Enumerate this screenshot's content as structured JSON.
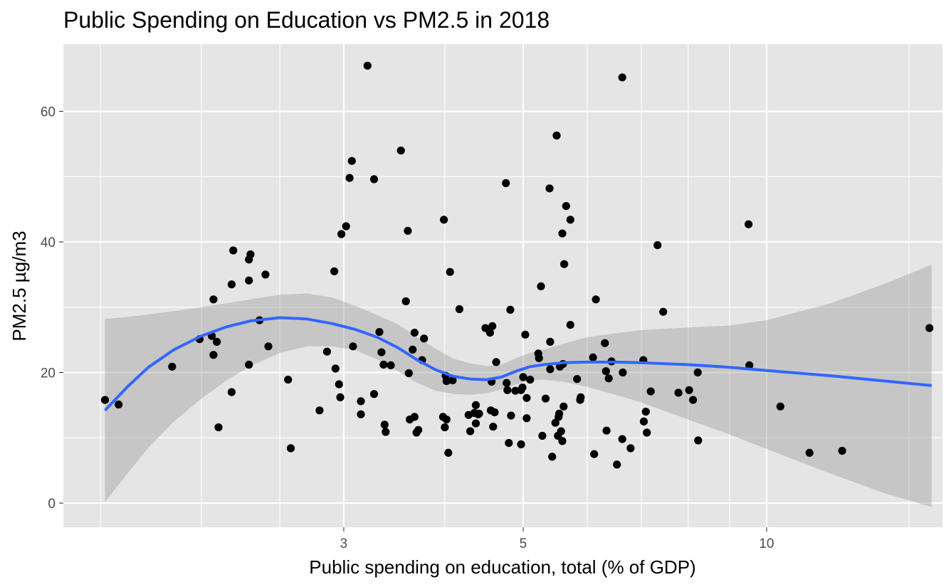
{
  "chart_data": {
    "type": "scatter",
    "title": "Public Spending on Education vs PM2.5 in 2018",
    "xlabel": "Public spending on education, total (% of GDP)",
    "ylabel": "PM2.5 µg/m3",
    "x_scale": "log10",
    "xlim": [
      1.35,
      16.5
    ],
    "ylim": [
      -3.7,
      70.3
    ],
    "x_ticks": [
      3,
      5,
      10
    ],
    "x_tick_labels": [
      "3",
      "5",
      "10"
    ],
    "x_minor_ticks": [
      1.5,
      2,
      2.5,
      4,
      6,
      7,
      8,
      9,
      15
    ],
    "y_ticks": [
      0,
      20,
      40,
      60
    ],
    "y_tick_labels": [
      "0",
      "20",
      "40",
      "60"
    ],
    "y_minor_ticks": [
      10,
      30,
      50
    ],
    "grid": true,
    "colors": {
      "panel_background": "#e5e5e5",
      "grid": "#ffffff",
      "points": "#000000",
      "smooth_line": "#3366ff",
      "ribbon": "#999999"
    },
    "points": [
      {
        "x": 1.52,
        "y": 15.8
      },
      {
        "x": 1.58,
        "y": 15.1
      },
      {
        "x": 1.84,
        "y": 20.9
      },
      {
        "x": 1.99,
        "y": 25.1
      },
      {
        "x": 2.06,
        "y": 25.6
      },
      {
        "x": 2.07,
        "y": 22.7
      },
      {
        "x": 2.07,
        "y": 31.2
      },
      {
        "x": 2.09,
        "y": 24.7
      },
      {
        "x": 2.1,
        "y": 11.6
      },
      {
        "x": 2.18,
        "y": 17.0
      },
      {
        "x": 2.18,
        "y": 33.5
      },
      {
        "x": 2.19,
        "y": 38.7
      },
      {
        "x": 2.29,
        "y": 21.2
      },
      {
        "x": 2.29,
        "y": 34.1
      },
      {
        "x": 2.29,
        "y": 37.3
      },
      {
        "x": 2.3,
        "y": 38.1
      },
      {
        "x": 2.36,
        "y": 28.0
      },
      {
        "x": 2.4,
        "y": 35.0
      },
      {
        "x": 2.42,
        "y": 24.0
      },
      {
        "x": 2.56,
        "y": 18.9
      },
      {
        "x": 2.58,
        "y": 8.4
      },
      {
        "x": 2.8,
        "y": 14.2
      },
      {
        "x": 2.86,
        "y": 23.2
      },
      {
        "x": 2.92,
        "y": 35.5
      },
      {
        "x": 2.93,
        "y": 20.6
      },
      {
        "x": 2.96,
        "y": 18.2
      },
      {
        "x": 2.97,
        "y": 16.2
      },
      {
        "x": 2.98,
        "y": 41.2
      },
      {
        "x": 3.02,
        "y": 42.4
      },
      {
        "x": 3.05,
        "y": 49.8
      },
      {
        "x": 3.07,
        "y": 52.4
      },
      {
        "x": 3.08,
        "y": 24.0
      },
      {
        "x": 3.15,
        "y": 15.6
      },
      {
        "x": 3.15,
        "y": 13.6
      },
      {
        "x": 3.21,
        "y": 67.0
      },
      {
        "x": 3.27,
        "y": 49.6
      },
      {
        "x": 3.27,
        "y": 16.7
      },
      {
        "x": 3.32,
        "y": 26.2
      },
      {
        "x": 3.34,
        "y": 23.1
      },
      {
        "x": 3.36,
        "y": 21.2
      },
      {
        "x": 3.37,
        "y": 12.0
      },
      {
        "x": 3.38,
        "y": 10.9
      },
      {
        "x": 3.43,
        "y": 21.1
      },
      {
        "x": 3.53,
        "y": 54.0
      },
      {
        "x": 3.58,
        "y": 30.9
      },
      {
        "x": 3.6,
        "y": 41.7
      },
      {
        "x": 3.61,
        "y": 19.9
      },
      {
        "x": 3.62,
        "y": 12.8
      },
      {
        "x": 3.65,
        "y": 23.5
      },
      {
        "x": 3.67,
        "y": 26.1
      },
      {
        "x": 3.67,
        "y": 13.2
      },
      {
        "x": 3.69,
        "y": 10.8
      },
      {
        "x": 3.71,
        "y": 11.2
      },
      {
        "x": 3.75,
        "y": 21.9
      },
      {
        "x": 3.77,
        "y": 25.2
      },
      {
        "x": 3.98,
        "y": 13.2
      },
      {
        "x": 3.99,
        "y": 43.4
      },
      {
        "x": 4.0,
        "y": 11.6
      },
      {
        "x": 4.01,
        "y": 19.5
      },
      {
        "x": 4.02,
        "y": 18.7
      },
      {
        "x": 4.02,
        "y": 12.8
      },
      {
        "x": 4.04,
        "y": 7.7
      },
      {
        "x": 4.06,
        "y": 35.4
      },
      {
        "x": 4.09,
        "y": 18.8
      },
      {
        "x": 4.17,
        "y": 29.7
      },
      {
        "x": 4.28,
        "y": 13.5
      },
      {
        "x": 4.3,
        "y": 11.0
      },
      {
        "x": 4.35,
        "y": 13.8
      },
      {
        "x": 4.37,
        "y": 15.0
      },
      {
        "x": 4.37,
        "y": 12.2
      },
      {
        "x": 4.4,
        "y": 13.6
      },
      {
        "x": 4.41,
        "y": 13.7
      },
      {
        "x": 4.49,
        "y": 26.8
      },
      {
        "x": 4.55,
        "y": 26.1
      },
      {
        "x": 4.56,
        "y": 14.2
      },
      {
        "x": 4.57,
        "y": 18.6
      },
      {
        "x": 4.58,
        "y": 27.1
      },
      {
        "x": 4.59,
        "y": 11.7
      },
      {
        "x": 4.61,
        "y": 13.9
      },
      {
        "x": 4.63,
        "y": 21.6
      },
      {
        "x": 4.76,
        "y": 49.0
      },
      {
        "x": 4.77,
        "y": 18.4
      },
      {
        "x": 4.78,
        "y": 17.3
      },
      {
        "x": 4.8,
        "y": 9.2
      },
      {
        "x": 4.82,
        "y": 29.6
      },
      {
        "x": 4.83,
        "y": 13.4
      },
      {
        "x": 4.89,
        "y": 17.2
      },
      {
        "x": 4.97,
        "y": 9.0
      },
      {
        "x": 4.97,
        "y": 17.3
      },
      {
        "x": 4.99,
        "y": 17.7
      },
      {
        "x": 5.0,
        "y": 19.3
      },
      {
        "x": 5.03,
        "y": 25.8
      },
      {
        "x": 5.05,
        "y": 16.1
      },
      {
        "x": 5.05,
        "y": 13.0
      },
      {
        "x": 5.1,
        "y": 18.9
      },
      {
        "x": 5.22,
        "y": 22.9
      },
      {
        "x": 5.23,
        "y": 22.2
      },
      {
        "x": 5.26,
        "y": 33.2
      },
      {
        "x": 5.28,
        "y": 10.3
      },
      {
        "x": 5.33,
        "y": 16.0
      },
      {
        "x": 5.39,
        "y": 48.2
      },
      {
        "x": 5.4,
        "y": 24.7
      },
      {
        "x": 5.4,
        "y": 20.5
      },
      {
        "x": 5.43,
        "y": 7.1
      },
      {
        "x": 5.48,
        "y": 12.3
      },
      {
        "x": 5.5,
        "y": 56.3
      },
      {
        "x": 5.52,
        "y": 10.3
      },
      {
        "x": 5.53,
        "y": 13.2
      },
      {
        "x": 5.54,
        "y": 13.7
      },
      {
        "x": 5.55,
        "y": 20.9
      },
      {
        "x": 5.57,
        "y": 11.0
      },
      {
        "x": 5.59,
        "y": 41.3
      },
      {
        "x": 5.59,
        "y": 9.5
      },
      {
        "x": 5.6,
        "y": 21.3
      },
      {
        "x": 5.61,
        "y": 14.8
      },
      {
        "x": 5.62,
        "y": 36.6
      },
      {
        "x": 5.65,
        "y": 45.5
      },
      {
        "x": 5.72,
        "y": 43.4
      },
      {
        "x": 5.72,
        "y": 27.3
      },
      {
        "x": 5.83,
        "y": 19.0
      },
      {
        "x": 5.88,
        "y": 15.8
      },
      {
        "x": 5.89,
        "y": 16.2
      },
      {
        "x": 6.1,
        "y": 22.3
      },
      {
        "x": 6.12,
        "y": 7.5
      },
      {
        "x": 6.15,
        "y": 31.2
      },
      {
        "x": 6.31,
        "y": 24.5
      },
      {
        "x": 6.33,
        "y": 20.2
      },
      {
        "x": 6.34,
        "y": 11.1
      },
      {
        "x": 6.38,
        "y": 19.1
      },
      {
        "x": 6.43,
        "y": 21.7
      },
      {
        "x": 6.53,
        "y": 5.9
      },
      {
        "x": 6.63,
        "y": 65.2
      },
      {
        "x": 6.63,
        "y": 9.8
      },
      {
        "x": 6.64,
        "y": 20.0
      },
      {
        "x": 6.79,
        "y": 8.4
      },
      {
        "x": 7.04,
        "y": 21.9
      },
      {
        "x": 7.05,
        "y": 12.5
      },
      {
        "x": 7.09,
        "y": 14.0
      },
      {
        "x": 7.11,
        "y": 10.8
      },
      {
        "x": 7.19,
        "y": 17.1
      },
      {
        "x": 7.33,
        "y": 39.5
      },
      {
        "x": 7.45,
        "y": 29.3
      },
      {
        "x": 7.78,
        "y": 16.9
      },
      {
        "x": 8.02,
        "y": 17.3
      },
      {
        "x": 8.11,
        "y": 15.8
      },
      {
        "x": 8.22,
        "y": 20.0
      },
      {
        "x": 8.23,
        "y": 9.6
      },
      {
        "x": 9.5,
        "y": 42.7
      },
      {
        "x": 9.52,
        "y": 21.1
      },
      {
        "x": 10.4,
        "y": 14.8
      },
      {
        "x": 11.3,
        "y": 7.7
      },
      {
        "x": 12.4,
        "y": 8.0
      },
      {
        "x": 15.9,
        "y": 26.8
      }
    ],
    "smooth_line": {
      "x": [
        1.52,
        1.62,
        1.72,
        1.85,
        2.0,
        2.15,
        2.3,
        2.5,
        2.7,
        2.9,
        3.1,
        3.3,
        3.5,
        3.7,
        3.9,
        4.1,
        4.3,
        4.5,
        4.7,
        4.9,
        5.1,
        5.3,
        5.6,
        6.0,
        6.5,
        7.0,
        8.0,
        9.0,
        10.0,
        12.0,
        14.0,
        16.0
      ],
      "y": [
        14.2,
        17.8,
        20.8,
        23.5,
        25.6,
        27.0,
        27.9,
        28.4,
        28.2,
        27.5,
        26.6,
        25.4,
        23.8,
        21.9,
        20.4,
        19.4,
        19.0,
        18.9,
        19.3,
        20.2,
        20.9,
        21.2,
        21.5,
        21.6,
        21.6,
        21.5,
        21.2,
        20.8,
        20.3,
        19.5,
        18.7,
        18.0
      ]
    },
    "confidence_band": {
      "x": [
        1.52,
        1.62,
        1.72,
        1.85,
        2.0,
        2.15,
        2.3,
        2.5,
        2.7,
        2.9,
        3.1,
        3.3,
        3.5,
        3.7,
        3.9,
        4.1,
        4.3,
        4.5,
        4.7,
        4.9,
        5.1,
        5.3,
        5.6,
        6.0,
        6.5,
        7.0,
        8.0,
        9.0,
        10.0,
        12.0,
        14.0,
        16.0
      ],
      "ymin": [
        0.2,
        4.5,
        8.5,
        12.5,
        16.0,
        18.8,
        21.0,
        23.0,
        24.0,
        24.0,
        23.4,
        22.0,
        20.2,
        18.4,
        17.2,
        16.7,
        16.6,
        16.8,
        17.4,
        18.2,
        18.8,
        18.9,
        18.6,
        17.8,
        16.6,
        15.4,
        12.8,
        10.5,
        8.3,
        4.5,
        1.5,
        -0.6
      ],
      "ymax": [
        28.2,
        28.5,
        28.9,
        29.4,
        30.0,
        30.6,
        31.2,
        31.9,
        32.1,
        31.5,
        30.2,
        28.8,
        27.4,
        25.4,
        23.6,
        22.1,
        21.4,
        21.0,
        21.2,
        22.2,
        23.0,
        23.5,
        24.4,
        25.4,
        26.0,
        26.5,
        26.9,
        27.2,
        28.0,
        30.6,
        33.6,
        36.5
      ]
    }
  }
}
